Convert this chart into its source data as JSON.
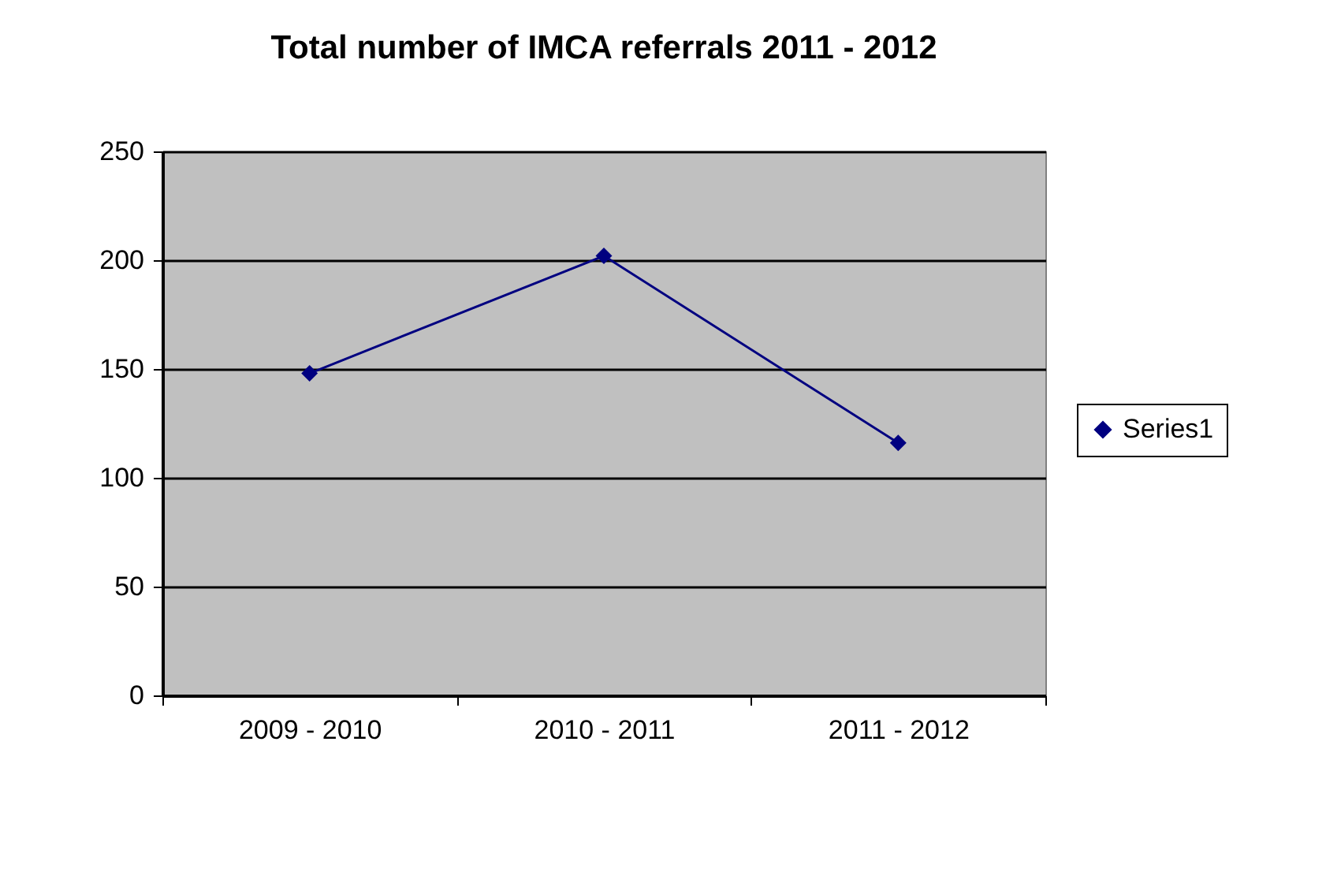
{
  "chart_data": {
    "type": "line",
    "title": "Total number of IMCA referrals 2011 - 2012",
    "categories": [
      "2009 - 2010",
      "2010 - 2011",
      "2011 - 2012"
    ],
    "series": [
      {
        "name": "Series1",
        "color": "#000080",
        "values": [
          148,
          202,
          116
        ]
      }
    ],
    "ylim": [
      0,
      250
    ],
    "yticks": [
      0,
      50,
      100,
      150,
      200,
      250
    ],
    "grid": "y",
    "legend": "right",
    "marker": "diamond"
  }
}
